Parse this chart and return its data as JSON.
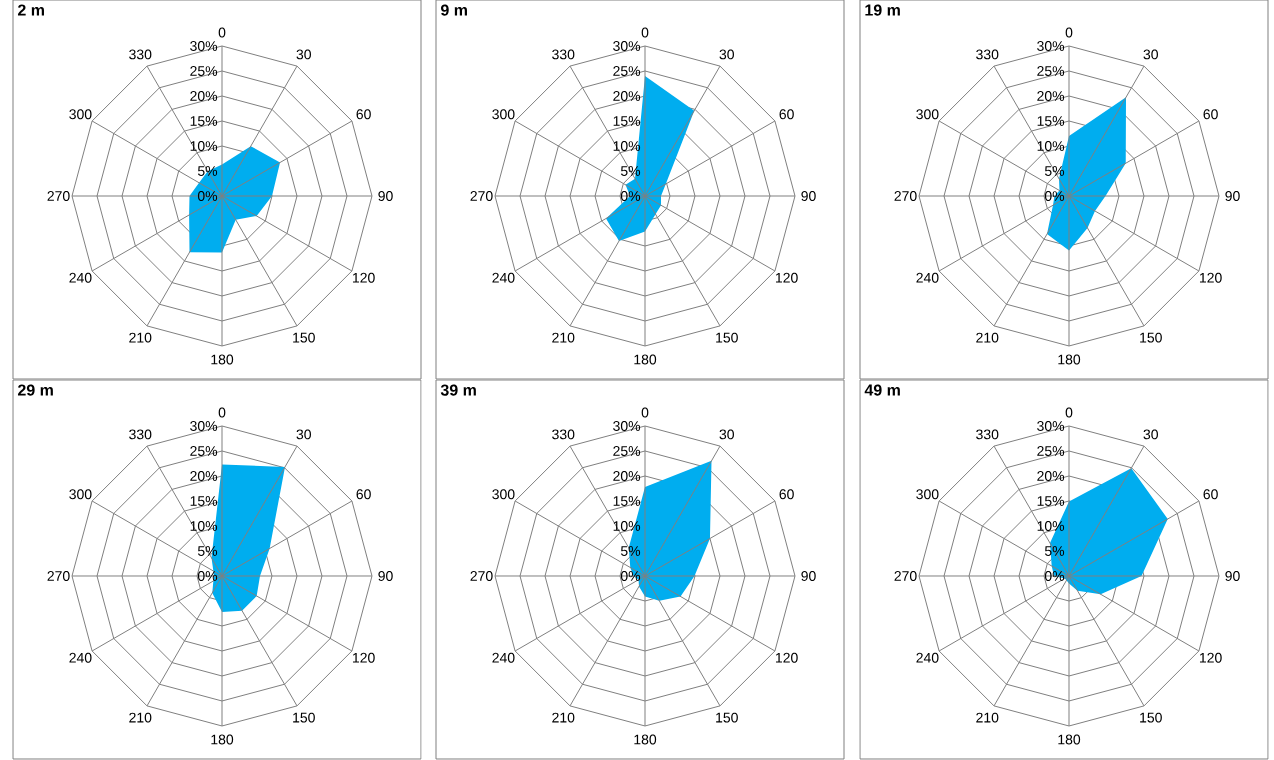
{
  "chart_data": [
    {
      "type": "radar",
      "title": "2 m",
      "categories": [
        "0",
        "30",
        "60",
        "90",
        "120",
        "150",
        "180",
        "210",
        "240",
        "270",
        "300",
        "330"
      ],
      "series": [
        {
          "color": "#00adef",
          "values": [
            6.3,
            11.5,
            13.4,
            10,
            8,
            5.5,
            11.3,
            13,
            7.6,
            6.5,
            5.3,
            5.7
          ]
        }
      ],
      "ylim": [
        0,
        30
      ],
      "yticks": [
        {
          "value": 0,
          "label": "0%"
        },
        {
          "value": 5,
          "label": "5%"
        },
        {
          "value": 10,
          "label": "10%"
        },
        {
          "value": 15,
          "label": "15%"
        },
        {
          "value": 20,
          "label": "20%"
        },
        {
          "value": 25,
          "label": "25%"
        },
        {
          "value": 30,
          "label": "30%"
        }
      ],
      "grid": true
    },
    {
      "type": "radar",
      "title": "9 m",
      "categories": [
        "0",
        "30",
        "60",
        "90",
        "120",
        "150",
        "180",
        "210",
        "240",
        "270",
        "300",
        "330"
      ],
      "series": [
        {
          "color": "#00adef",
          "values": [
            24,
            19.7,
            4.8,
            3.2,
            3.7,
            4.2,
            7.1,
            10.4,
            9,
            3,
            4.5,
            4
          ]
        }
      ],
      "ylim": [
        0,
        30
      ],
      "yticks": [
        {
          "value": 0,
          "label": "0%"
        },
        {
          "value": 5,
          "label": "5%"
        },
        {
          "value": 10,
          "label": "10%"
        },
        {
          "value": 15,
          "label": "15%"
        },
        {
          "value": 20,
          "label": "20%"
        },
        {
          "value": 25,
          "label": "25%"
        },
        {
          "value": 30,
          "label": "30%"
        }
      ],
      "grid": true
    },
    {
      "type": "radar",
      "title": "19 m",
      "categories": [
        "0",
        "30",
        "60",
        "90",
        "120",
        "150",
        "180",
        "210",
        "240",
        "270",
        "300",
        "330"
      ],
      "series": [
        {
          "color": "#00adef",
          "values": [
            12,
            22.8,
            13.1,
            7.3,
            6,
            7.4,
            10.9,
            8.8,
            3.7,
            2.9,
            2.2,
            4
          ]
        }
      ],
      "ylim": [
        0,
        30
      ],
      "yticks": [
        {
          "value": 0,
          "label": "0%"
        },
        {
          "value": 5,
          "label": "5%"
        },
        {
          "value": 10,
          "label": "10%"
        },
        {
          "value": 15,
          "label": "15%"
        },
        {
          "value": 20,
          "label": "20%"
        },
        {
          "value": 25,
          "label": "25%"
        },
        {
          "value": 30,
          "label": "30%"
        }
      ],
      "grid": true
    },
    {
      "type": "radar",
      "title": "29 m",
      "categories": [
        "0",
        "30",
        "60",
        "90",
        "120",
        "150",
        "180",
        "210",
        "240",
        "270",
        "300",
        "330"
      ],
      "series": [
        {
          "color": "#00adef",
          "values": [
            22.3,
            25.2,
            11,
            7.6,
            8,
            8,
            7.2,
            3.9,
            2,
            1.6,
            2,
            4.2
          ]
        }
      ],
      "ylim": [
        0,
        30
      ],
      "yticks": [
        {
          "value": 0,
          "label": "0%"
        },
        {
          "value": 5,
          "label": "5%"
        },
        {
          "value": 10,
          "label": "10%"
        },
        {
          "value": 15,
          "label": "15%"
        },
        {
          "value": 20,
          "label": "20%"
        },
        {
          "value": 25,
          "label": "25%"
        },
        {
          "value": 30,
          "label": "30%"
        }
      ],
      "grid": true
    },
    {
      "type": "radar",
      "title": "39 m",
      "categories": [
        "0",
        "30",
        "60",
        "90",
        "120",
        "150",
        "180",
        "210",
        "240",
        "270",
        "300",
        "330"
      ],
      "series": [
        {
          "color": "#00adef",
          "values": [
            17.8,
            26.6,
            15,
            9.9,
            8.2,
            5.7,
            4.1,
            2.4,
            1.5,
            2.3,
            3.4,
            6.5
          ]
        }
      ],
      "ylim": [
        0,
        30
      ],
      "yticks": [
        {
          "value": 0,
          "label": "0%"
        },
        {
          "value": 5,
          "label": "5%"
        },
        {
          "value": 10,
          "label": "10%"
        },
        {
          "value": 15,
          "label": "15%"
        },
        {
          "value": 20,
          "label": "20%"
        },
        {
          "value": 25,
          "label": "25%"
        },
        {
          "value": 30,
          "label": "30%"
        }
      ],
      "grid": true
    },
    {
      "type": "radar",
      "title": "49 m",
      "categories": [
        "0",
        "30",
        "60",
        "90",
        "120",
        "150",
        "180",
        "210",
        "240",
        "270",
        "300",
        "330"
      ],
      "series": [
        {
          "color": "#00adef",
          "values": [
            14.9,
            24.9,
            22.8,
            14.5,
            7.3,
            3.4,
            1.5,
            1,
            1,
            3,
            4,
            7.6
          ]
        }
      ],
      "ylim": [
        0,
        30
      ],
      "yticks": [
        {
          "value": 0,
          "label": "0%"
        },
        {
          "value": 5,
          "label": "5%"
        },
        {
          "value": 10,
          "label": "10%"
        },
        {
          "value": 15,
          "label": "15%"
        },
        {
          "value": 20,
          "label": "20%"
        },
        {
          "value": 25,
          "label": "25%"
        },
        {
          "value": 30,
          "label": "30%"
        }
      ],
      "grid": true
    }
  ]
}
